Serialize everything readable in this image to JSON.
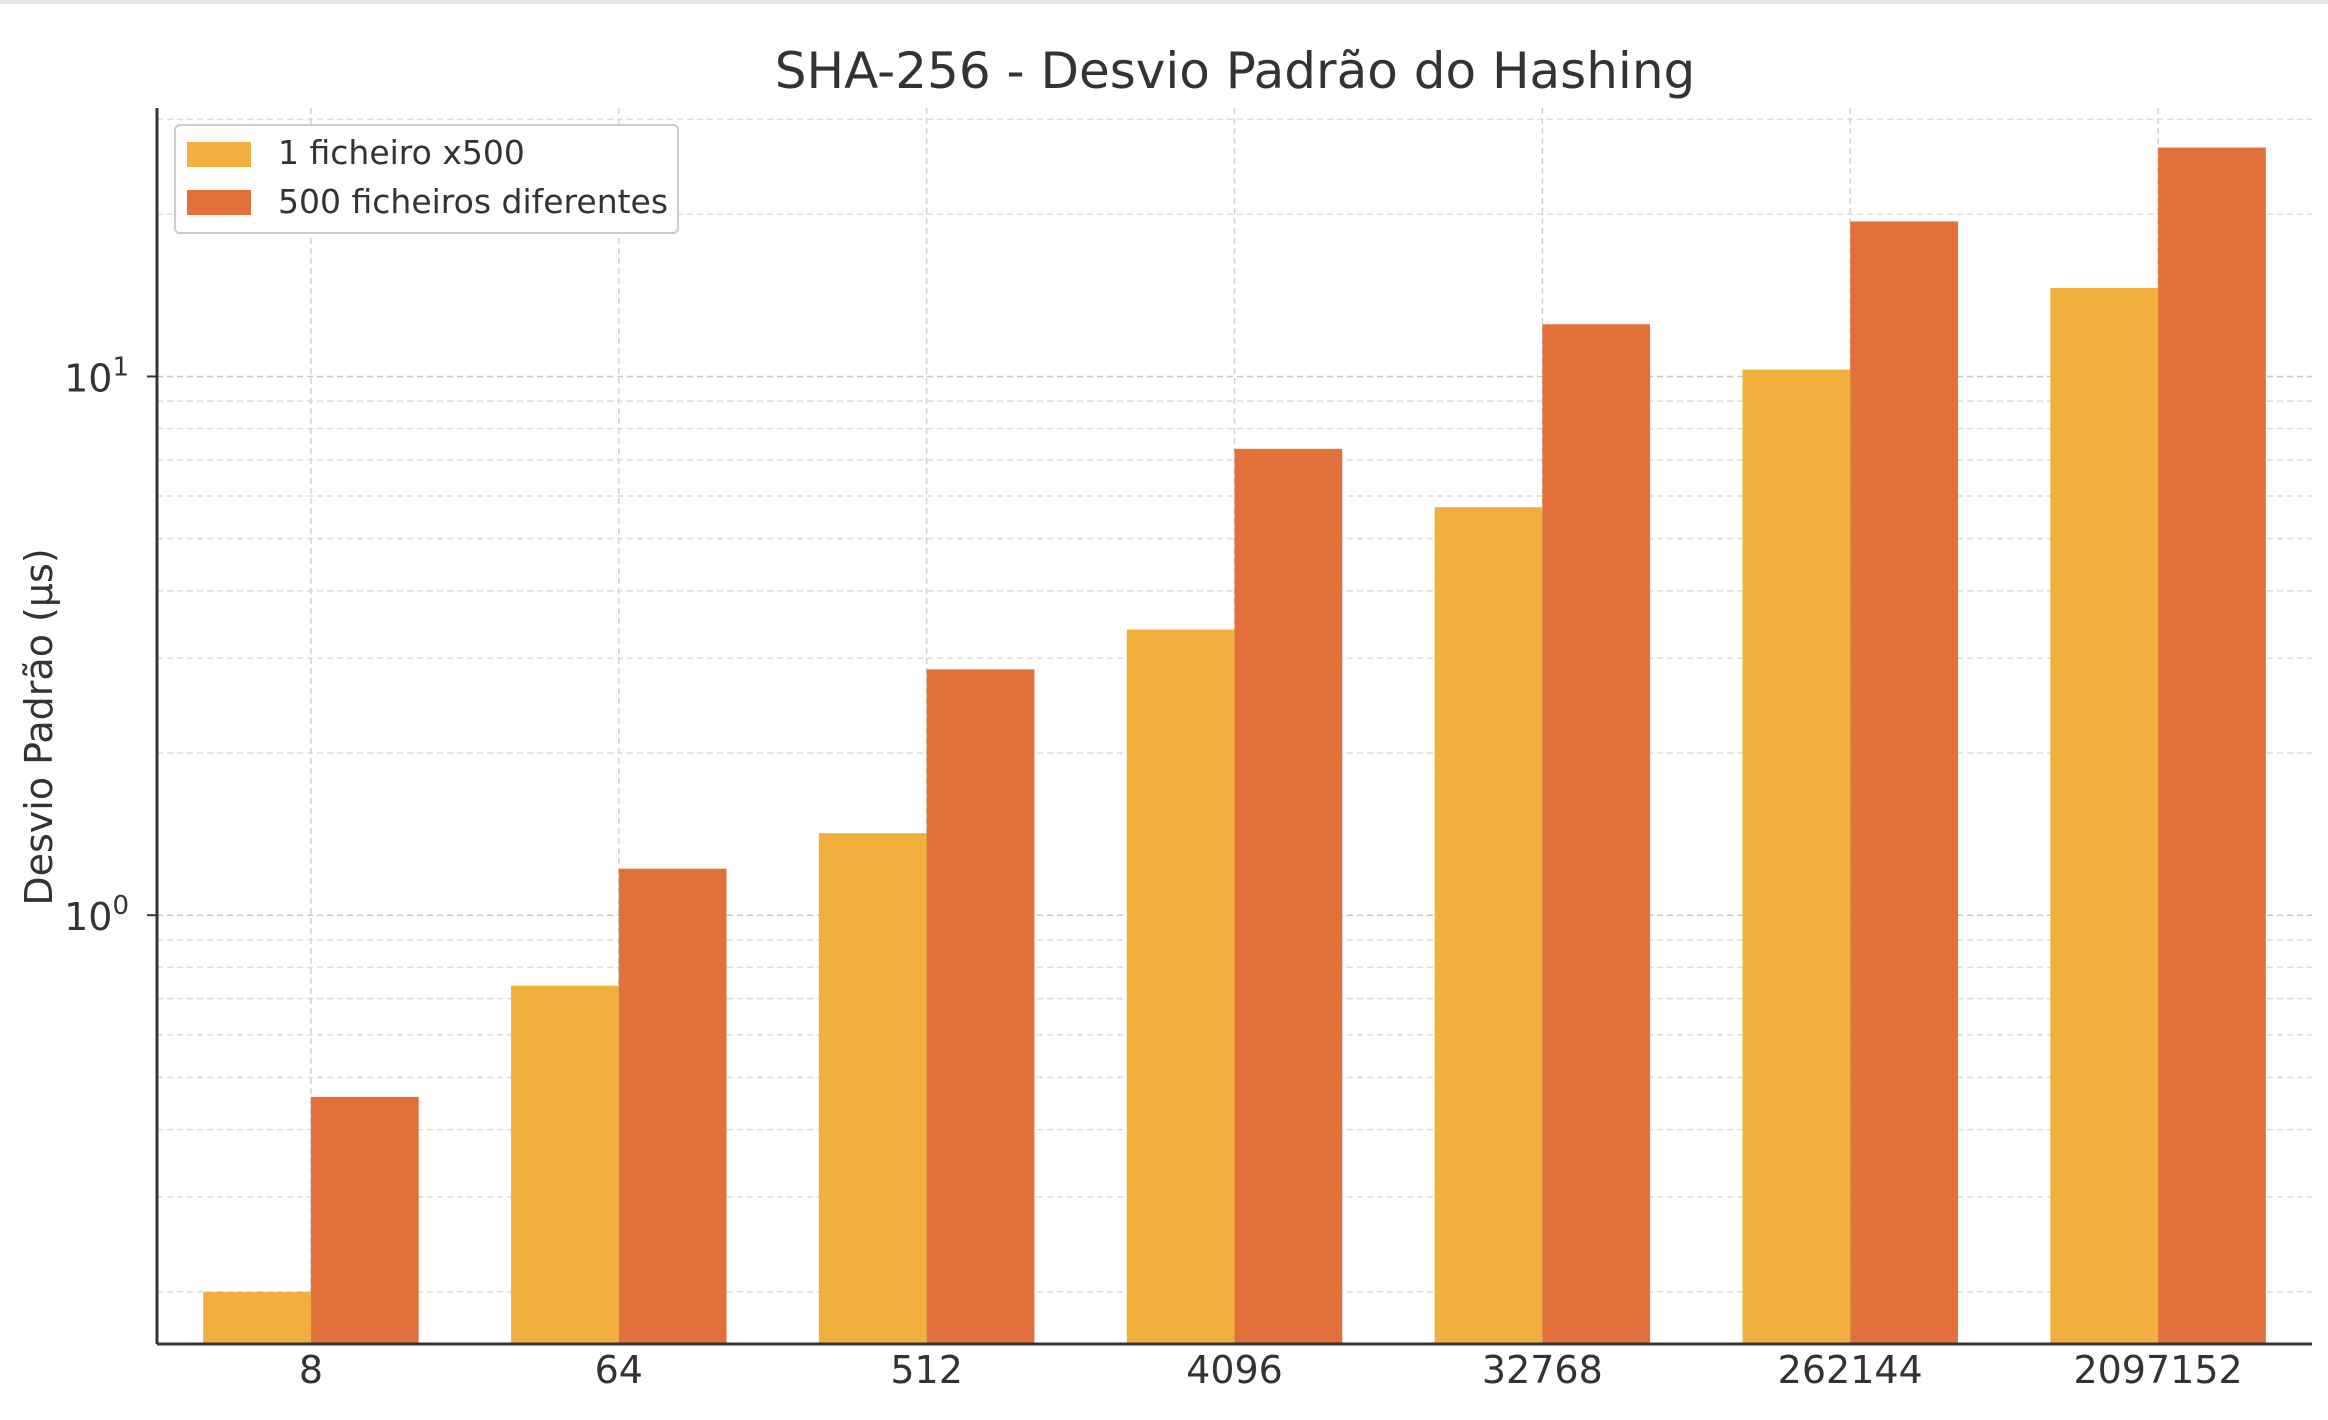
{
  "chart_data": {
    "type": "bar",
    "title": "SHA-256 - Desvio Padrão do Hashing",
    "xlabel": "",
    "ylabel": "Desvio Padrão (µs)",
    "yscale": "log",
    "ylim": [
      0.16,
      31.5
    ],
    "yticks": [
      {
        "value": 1,
        "base": "10",
        "exp": "0"
      },
      {
        "value": 10,
        "base": "10",
        "exp": "1"
      }
    ],
    "grid": true,
    "legend_position": "top-left",
    "categories": [
      "8",
      "64",
      "512",
      "4096",
      "32768",
      "262144",
      "2097152"
    ],
    "series": [
      {
        "name": "1 ficheiro x500",
        "color": "#F1B03E",
        "values": [
          0.2,
          0.74,
          1.42,
          3.39,
          5.72,
          10.3,
          14.6
        ]
      },
      {
        "name": "500 ficheiros diferentes",
        "color": "#E1703A",
        "values": [
          0.46,
          1.22,
          2.86,
          7.34,
          12.5,
          19.4,
          26.6
        ]
      }
    ]
  }
}
